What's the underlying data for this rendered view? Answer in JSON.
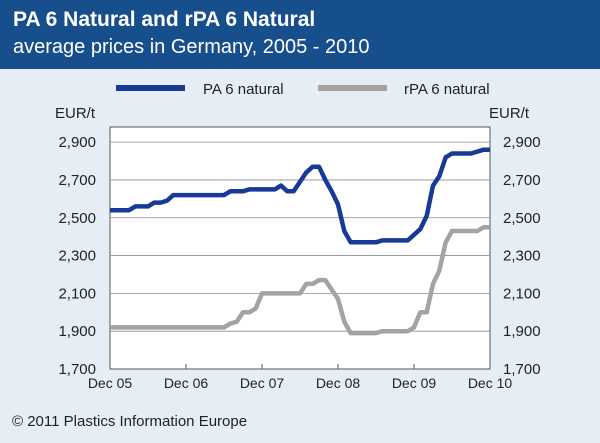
{
  "header": {
    "title": "PA 6 Natural and rPA 6 Natural",
    "subtitle": "average prices in Germany, 2005 - 2010"
  },
  "footer": {
    "copyright": "© 2011 Plastics Information Europe"
  },
  "colors": {
    "header_bg": "#174e8c",
    "page_bg": "#e5eef5",
    "pa6": "#173a96",
    "rpa6": "#a3a3a3"
  },
  "chart_data": {
    "type": "line",
    "title": "PA 6 Natural and rPA 6 Natural",
    "subtitle": "average prices in Germany, 2005 - 2010",
    "ylabel_left": "EUR/t",
    "ylabel_right": "EUR/t",
    "ylim": [
      1700,
      2980
    ],
    "yticks": [
      1700,
      1900,
      2100,
      2300,
      2500,
      2700,
      2900
    ],
    "ytick_labels": [
      "1,700",
      "1,900",
      "2,100",
      "2,300",
      "2,500",
      "2,700",
      "2,900"
    ],
    "xlim": [
      0,
      60
    ],
    "xticks": [
      0,
      12,
      24,
      36,
      48,
      60
    ],
    "xtick_labels": [
      "Dec 05",
      "Dec 06",
      "Dec 07",
      "Dec 08",
      "Dec 09",
      "Dec 10"
    ],
    "grid": true,
    "legend": "top",
    "series": [
      {
        "name": "PA 6 natural",
        "color": "#173a96",
        "points": [
          [
            0,
            2540
          ],
          [
            3,
            2540
          ],
          [
            4,
            2560
          ],
          [
            6,
            2560
          ],
          [
            7,
            2580
          ],
          [
            8,
            2580
          ],
          [
            9,
            2590
          ],
          [
            10,
            2620
          ],
          [
            11,
            2620
          ],
          [
            12,
            2620
          ],
          [
            13,
            2620
          ],
          [
            14,
            2620
          ],
          [
            15,
            2620
          ],
          [
            16,
            2620
          ],
          [
            17,
            2620
          ],
          [
            18,
            2620
          ],
          [
            19,
            2640
          ],
          [
            20,
            2640
          ],
          [
            21,
            2640
          ],
          [
            22,
            2650
          ],
          [
            23,
            2650
          ],
          [
            24,
            2650
          ],
          [
            25,
            2650
          ],
          [
            26,
            2650
          ],
          [
            27,
            2670
          ],
          [
            28,
            2640
          ],
          [
            29,
            2640
          ],
          [
            30,
            2690
          ],
          [
            31,
            2740
          ],
          [
            32,
            2770
          ],
          [
            33,
            2770
          ],
          [
            34,
            2700
          ],
          [
            35,
            2640
          ],
          [
            36,
            2570
          ],
          [
            37,
            2430
          ],
          [
            38,
            2370
          ],
          [
            39,
            2370
          ],
          [
            40,
            2370
          ],
          [
            41,
            2370
          ],
          [
            42,
            2370
          ],
          [
            43,
            2380
          ],
          [
            44,
            2380
          ],
          [
            45,
            2380
          ],
          [
            46,
            2380
          ],
          [
            47,
            2380
          ],
          [
            48,
            2410
          ],
          [
            49,
            2440
          ],
          [
            50,
            2510
          ],
          [
            51,
            2670
          ],
          [
            52,
            2720
          ],
          [
            53,
            2820
          ],
          [
            54,
            2840
          ],
          [
            55,
            2840
          ],
          [
            56,
            2840
          ],
          [
            57,
            2840
          ],
          [
            58,
            2850
          ],
          [
            59,
            2860
          ],
          [
            60,
            2860
          ]
        ]
      },
      {
        "name": "rPA 6 natural",
        "color": "#a3a3a3",
        "points": [
          [
            0,
            1920
          ],
          [
            3,
            1920
          ],
          [
            6,
            1920
          ],
          [
            9,
            1920
          ],
          [
            12,
            1920
          ],
          [
            15,
            1920
          ],
          [
            18,
            1920
          ],
          [
            19,
            1940
          ],
          [
            20,
            1950
          ],
          [
            21,
            2000
          ],
          [
            22,
            2000
          ],
          [
            23,
            2020
          ],
          [
            24,
            2100
          ],
          [
            25,
            2100
          ],
          [
            26,
            2100
          ],
          [
            27,
            2100
          ],
          [
            28,
            2100
          ],
          [
            29,
            2100
          ],
          [
            30,
            2100
          ],
          [
            31,
            2150
          ],
          [
            32,
            2150
          ],
          [
            33,
            2170
          ],
          [
            34,
            2170
          ],
          [
            35,
            2120
          ],
          [
            36,
            2070
          ],
          [
            37,
            1950
          ],
          [
            38,
            1890
          ],
          [
            39,
            1890
          ],
          [
            40,
            1890
          ],
          [
            41,
            1890
          ],
          [
            42,
            1890
          ],
          [
            43,
            1900
          ],
          [
            44,
            1900
          ],
          [
            45,
            1900
          ],
          [
            46,
            1900
          ],
          [
            47,
            1900
          ],
          [
            48,
            1920
          ],
          [
            49,
            2000
          ],
          [
            50,
            2000
          ],
          [
            51,
            2150
          ],
          [
            52,
            2220
          ],
          [
            53,
            2370
          ],
          [
            54,
            2430
          ],
          [
            55,
            2430
          ],
          [
            56,
            2430
          ],
          [
            57,
            2430
          ],
          [
            58,
            2430
          ],
          [
            59,
            2450
          ],
          [
            60,
            2450
          ]
        ]
      }
    ]
  }
}
